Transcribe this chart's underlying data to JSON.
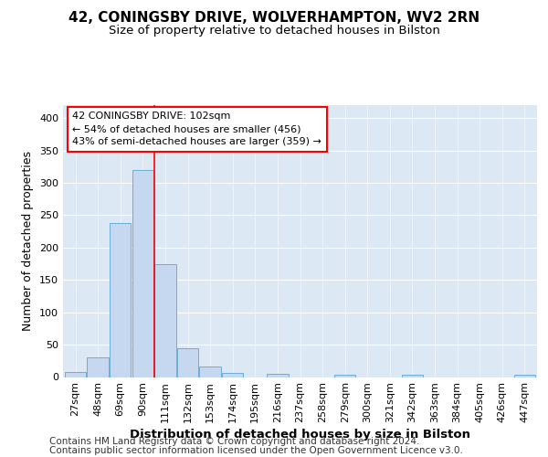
{
  "title_line1": "42, CONINGSBY DRIVE, WOLVERHAMPTON, WV2 2RN",
  "title_line2": "Size of property relative to detached houses in Bilston",
  "xlabel": "Distribution of detached houses by size in Bilston",
  "ylabel": "Number of detached properties",
  "footer_line1": "Contains HM Land Registry data © Crown copyright and database right 2024.",
  "footer_line2": "Contains public sector information licensed under the Open Government Licence v3.0.",
  "categories": [
    "27sqm",
    "48sqm",
    "69sqm",
    "90sqm",
    "111sqm",
    "132sqm",
    "153sqm",
    "174sqm",
    "195sqm",
    "216sqm",
    "237sqm",
    "258sqm",
    "279sqm",
    "300sqm",
    "321sqm",
    "342sqm",
    "363sqm",
    "384sqm",
    "405sqm",
    "426sqm",
    "447sqm"
  ],
  "bar_heights": [
    8,
    30,
    238,
    320,
    175,
    44,
    16,
    6,
    0,
    5,
    0,
    0,
    3,
    0,
    0,
    3,
    0,
    0,
    0,
    0,
    3
  ],
  "property_label": "42 CONINGSBY DRIVE: 102sqm",
  "pct_smaller": 54,
  "n_smaller": 456,
  "pct_larger_semi": 43,
  "n_larger_semi": 359,
  "vline_x": 3.5,
  "bar_color": "#c5d8ef",
  "bar_edge_color": "#6baed6",
  "vline_color": "red",
  "fig_bg_color": "#ffffff",
  "plot_bg_color": "#dce9f5",
  "ylim": [
    0,
    420
  ],
  "yticks": [
    0,
    50,
    100,
    150,
    200,
    250,
    300,
    350,
    400
  ],
  "title_fontsize": 11,
  "subtitle_fontsize": 9.5,
  "axis_label_fontsize": 9,
  "tick_fontsize": 8,
  "annot_fontsize": 8,
  "footer_fontsize": 7.5
}
